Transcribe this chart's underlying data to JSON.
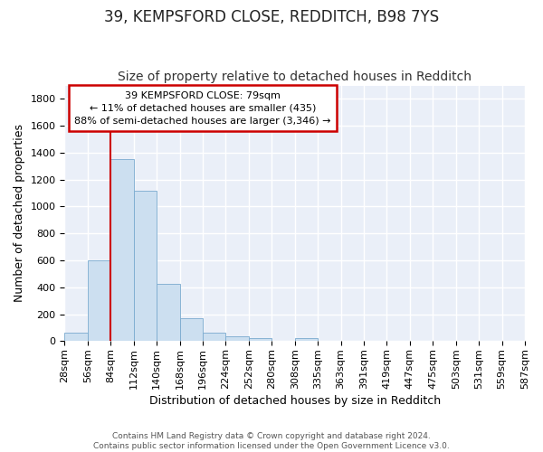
{
  "title1": "39, KEMPSFORD CLOSE, REDDITCH, B98 7YS",
  "title2": "Size of property relative to detached houses in Redditch",
  "xlabel": "Distribution of detached houses by size in Redditch",
  "ylabel": "Number of detached properties",
  "bar_values": [
    60,
    600,
    1350,
    1120,
    425,
    170,
    65,
    35,
    20,
    0,
    20,
    0,
    0,
    0,
    0,
    0,
    0,
    0,
    0,
    0
  ],
  "bin_labels": [
    "28sqm",
    "56sqm",
    "84sqm",
    "112sqm",
    "140sqm",
    "168sqm",
    "196sqm",
    "224sqm",
    "252sqm",
    "280sqm",
    "308sqm",
    "335sqm",
    "363sqm",
    "391sqm",
    "419sqm",
    "447sqm",
    "475sqm",
    "503sqm",
    "531sqm",
    "559sqm",
    "587sqm"
  ],
  "bar_color": "#ccdff0",
  "bar_edge_color": "#7aaacf",
  "bg_color": "#eaeff8",
  "grid_color": "#ffffff",
  "vline_color": "#cc0000",
  "vline_x": 2,
  "annotation_line1": "39 KEMPSFORD CLOSE: 79sqm",
  "annotation_line2": "← 11% of detached houses are smaller (435)",
  "annotation_line3": "88% of semi-detached houses are larger (3,346) →",
  "annotation_box_facecolor": "#ffffff",
  "annotation_box_edgecolor": "#cc0000",
  "footer": "Contains HM Land Registry data © Crown copyright and database right 2024.\nContains public sector information licensed under the Open Government Licence v3.0.",
  "ylim": [
    0,
    1900
  ],
  "yticks": [
    0,
    200,
    400,
    600,
    800,
    1000,
    1200,
    1400,
    1600,
    1800
  ],
  "title1_fontsize": 12,
  "title2_fontsize": 10,
  "ylabel_fontsize": 9,
  "xlabel_fontsize": 9,
  "tick_fontsize": 8,
  "annot_fontsize": 8,
  "footer_fontsize": 6.5
}
